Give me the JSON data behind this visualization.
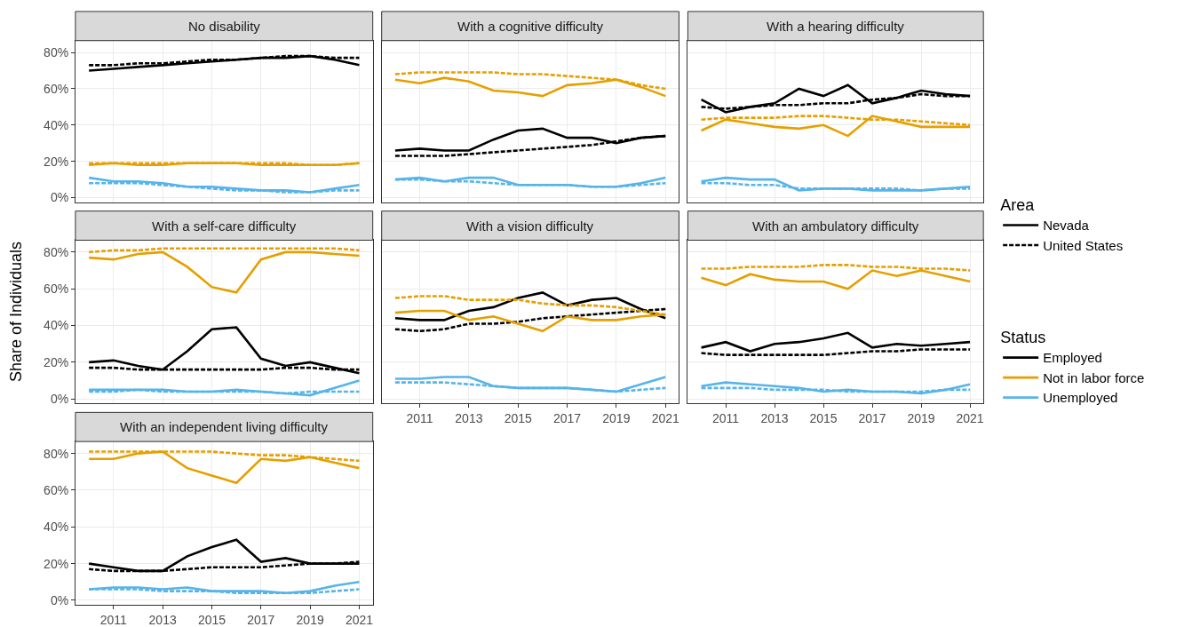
{
  "chart_data": [
    {
      "type": "line",
      "title": "No disability",
      "ylabel": "Share of Individuals",
      "legend": "right",
      "legend_title": [
        "Area",
        "Status"
      ],
      "grid": true,
      "marker": "none",
      "tick_labels": "y",
      "xlim": [
        2009.45,
        2021.55
      ],
      "ylim": [
        -2.5,
        86.5
      ],
      "xticks": [
        2011,
        2013,
        2015,
        2017,
        2019,
        2021
      ],
      "yticks": [
        {
          "value": 0,
          "label": "0%"
        },
        {
          "value": 20,
          "label": "20%"
        },
        {
          "value": 40,
          "label": "40%"
        },
        {
          "value": 60,
          "label": "60%"
        },
        {
          "value": 80,
          "label": "80%"
        }
      ],
      "x": [
        2010,
        2011,
        2012,
        2013,
        2014,
        2015,
        2016,
        2017,
        2018,
        2019,
        2020,
        2021
      ],
      "series": [
        {
          "name": "Employed",
          "line_style": "solid",
          "color": "#000000",
          "values": [
            70,
            71,
            72,
            73,
            74,
            75,
            76,
            77,
            77,
            78,
            76,
            73
          ]
        },
        {
          "line_style": "dashed",
          "color": "#000000",
          "values": [
            73,
            73,
            74,
            74,
            75,
            76,
            76,
            77,
            78,
            78,
            77,
            77
          ]
        },
        {
          "name": "Not in labor force",
          "line_style": "solid",
          "color": "#e69f00",
          "values": [
            18,
            19,
            18,
            18,
            19,
            19,
            19,
            18,
            18,
            18,
            18,
            19
          ]
        },
        {
          "line_style": "dashed",
          "color": "#e69f00",
          "values": [
            19,
            19,
            19,
            19,
            19,
            19,
            19,
            19,
            19,
            18,
            18,
            19
          ]
        },
        {
          "name": "Unemployed",
          "line_style": "solid",
          "color": "#56b4e9",
          "values": [
            11,
            9,
            9,
            8,
            6,
            6,
            5,
            4,
            4,
            3,
            5,
            7
          ]
        },
        {
          "line_style": "dashed",
          "color": "#56b4e9",
          "values": [
            8,
            8,
            8,
            7,
            6,
            5,
            4,
            4,
            3,
            3,
            4,
            4
          ]
        },
        {
          "name": "Nevada",
          "line_style": "solid",
          "color": "#000000",
          "values": [
            null,
            null,
            null,
            null,
            null,
            null,
            null,
            null,
            null,
            null,
            null,
            null
          ]
        },
        {
          "name": "United States",
          "line_style": "dashed",
          "color": "#000000",
          "values": [
            null,
            null,
            null,
            null,
            null,
            null,
            null,
            null,
            null,
            null,
            null,
            null
          ]
        }
      ]
    },
    {
      "type": "line",
      "title": "With a cognitive difficulty",
      "grid": true,
      "marker": "none",
      "tick_labels": false,
      "xlim": [
        2009.45,
        2021.55
      ],
      "ylim": [
        -2.5,
        86.5
      ],
      "xticks": [
        2011,
        2013,
        2015,
        2017,
        2019,
        2021
      ],
      "yticks": [
        {
          "value": 0,
          "label": null
        },
        {
          "value": 20,
          "label": null
        },
        {
          "value": 40,
          "label": null
        },
        {
          "value": 60,
          "label": null
        },
        {
          "value": 80,
          "label": null
        }
      ],
      "x": [
        2010,
        2011,
        2012,
        2013,
        2014,
        2015,
        2016,
        2017,
        2018,
        2019,
        2020,
        2021
      ],
      "series": [
        {
          "line_style": "solid",
          "color": "#000000",
          "values": [
            26,
            27,
            26,
            26,
            32,
            37,
            38,
            33,
            33,
            30,
            33,
            34
          ]
        },
        {
          "line_style": "dashed",
          "color": "#000000",
          "values": [
            23,
            23,
            23,
            24,
            25,
            26,
            27,
            28,
            29,
            31,
            33,
            34
          ]
        },
        {
          "line_style": "solid",
          "color": "#e69f00",
          "values": [
            65,
            63,
            66,
            64,
            59,
            58,
            56,
            62,
            63,
            65,
            61,
            56
          ]
        },
        {
          "line_style": "dashed",
          "color": "#e69f00",
          "values": [
            68,
            69,
            69,
            69,
            69,
            68,
            68,
            67,
            66,
            65,
            62,
            60
          ]
        },
        {
          "line_style": "solid",
          "color": "#56b4e9",
          "values": [
            10,
            11,
            9,
            11,
            11,
            7,
            7,
            7,
            6,
            6,
            8,
            11
          ]
        },
        {
          "line_style": "dashed",
          "color": "#56b4e9",
          "values": [
            10,
            10,
            9,
            9,
            8,
            7,
            7,
            7,
            6,
            6,
            7,
            8
          ]
        }
      ]
    },
    {
      "type": "line",
      "title": "With a hearing difficulty",
      "grid": true,
      "marker": "none",
      "tick_labels": false,
      "xlim": [
        2009.45,
        2021.55
      ],
      "ylim": [
        -2.5,
        86.5
      ],
      "xticks": [
        2011,
        2013,
        2015,
        2017,
        2019,
        2021
      ],
      "yticks": [
        {
          "value": 0,
          "label": null
        },
        {
          "value": 20,
          "label": null
        },
        {
          "value": 40,
          "label": null
        },
        {
          "value": 60,
          "label": null
        },
        {
          "value": 80,
          "label": null
        }
      ],
      "x": [
        2010,
        2011,
        2012,
        2013,
        2014,
        2015,
        2016,
        2017,
        2018,
        2019,
        2020,
        2021
      ],
      "series": [
        {
          "line_style": "solid",
          "color": "#000000",
          "values": [
            54,
            47,
            50,
            52,
            60,
            56,
            62,
            52,
            55,
            59,
            57,
            56
          ]
        },
        {
          "line_style": "dashed",
          "color": "#000000",
          "values": [
            50,
            49,
            50,
            51,
            51,
            52,
            52,
            54,
            55,
            57,
            56,
            56
          ]
        },
        {
          "line_style": "solid",
          "color": "#e69f00",
          "values": [
            37,
            43,
            41,
            39,
            38,
            40,
            34,
            45,
            42,
            39,
            39,
            39
          ]
        },
        {
          "line_style": "dashed",
          "color": "#e69f00",
          "values": [
            43,
            44,
            44,
            44,
            45,
            45,
            44,
            43,
            43,
            42,
            41,
            40
          ]
        },
        {
          "line_style": "solid",
          "color": "#56b4e9",
          "values": [
            9,
            11,
            10,
            10,
            4,
            5,
            5,
            4,
            4,
            4,
            5,
            6
          ]
        },
        {
          "line_style": "dashed",
          "color": "#56b4e9",
          "values": [
            8,
            8,
            7,
            7,
            5,
            5,
            5,
            5,
            5,
            4,
            5,
            5
          ]
        }
      ]
    },
    {
      "type": "line",
      "title": "With a self-care difficulty",
      "grid": true,
      "marker": "none",
      "tick_labels": "y",
      "xlim": [
        2009.45,
        2021.55
      ],
      "ylim": [
        -2.5,
        86.5
      ],
      "xticks": [
        2011,
        2013,
        2015,
        2017,
        2019,
        2021
      ],
      "yticks": [
        {
          "value": 0,
          "label": "0%"
        },
        {
          "value": 20,
          "label": "20%"
        },
        {
          "value": 40,
          "label": "40%"
        },
        {
          "value": 60,
          "label": "60%"
        },
        {
          "value": 80,
          "label": "80%"
        }
      ],
      "x": [
        2010,
        2011,
        2012,
        2013,
        2014,
        2015,
        2016,
        2017,
        2018,
        2019,
        2020,
        2021
      ],
      "series": [
        {
          "line_style": "solid",
          "color": "#000000",
          "values": [
            20,
            21,
            18,
            16,
            26,
            38,
            39,
            22,
            18,
            20,
            17,
            14
          ]
        },
        {
          "line_style": "dashed",
          "color": "#000000",
          "values": [
            17,
            17,
            16,
            16,
            16,
            16,
            16,
            16,
            17,
            17,
            16,
            16
          ]
        },
        {
          "line_style": "solid",
          "color": "#e69f00",
          "values": [
            77,
            76,
            79,
            80,
            72,
            61,
            58,
            76,
            80,
            80,
            79,
            78
          ]
        },
        {
          "line_style": "dashed",
          "color": "#e69f00",
          "values": [
            80,
            81,
            81,
            82,
            82,
            82,
            82,
            82,
            82,
            82,
            82,
            81
          ]
        },
        {
          "line_style": "solid",
          "color": "#56b4e9",
          "values": [
            5,
            5,
            5,
            5,
            4,
            4,
            5,
            4,
            3,
            2,
            6,
            10
          ]
        },
        {
          "line_style": "dashed",
          "color": "#56b4e9",
          "values": [
            4,
            4,
            5,
            4,
            4,
            4,
            4,
            4,
            3,
            4,
            4,
            4
          ]
        }
      ]
    },
    {
      "type": "line",
      "title": "With a vision difficulty",
      "grid": true,
      "marker": "none",
      "tick_labels": "x",
      "xlim": [
        2009.45,
        2021.55
      ],
      "ylim": [
        -2.5,
        86.5
      ],
      "xticks": [
        2011,
        2013,
        2015,
        2017,
        2019,
        2021
      ],
      "yticks": [
        {
          "value": 0,
          "label": null
        },
        {
          "value": 20,
          "label": null
        },
        {
          "value": 40,
          "label": null
        },
        {
          "value": 60,
          "label": null
        },
        {
          "value": 80,
          "label": null
        }
      ],
      "x": [
        2010,
        2011,
        2012,
        2013,
        2014,
        2015,
        2016,
        2017,
        2018,
        2019,
        2020,
        2021
      ],
      "series": [
        {
          "line_style": "solid",
          "color": "#000000",
          "values": [
            44,
            43,
            43,
            48,
            50,
            55,
            58,
            51,
            54,
            55,
            49,
            44
          ]
        },
        {
          "line_style": "dashed",
          "color": "#000000",
          "values": [
            38,
            37,
            38,
            41,
            41,
            42,
            44,
            45,
            46,
            47,
            48,
            49
          ]
        },
        {
          "line_style": "solid",
          "color": "#e69f00",
          "values": [
            47,
            48,
            48,
            43,
            45,
            41,
            37,
            45,
            43,
            43,
            45,
            46
          ]
        },
        {
          "line_style": "dashed",
          "color": "#e69f00",
          "values": [
            55,
            56,
            56,
            54,
            54,
            54,
            52,
            51,
            51,
            50,
            48,
            46
          ]
        },
        {
          "line_style": "solid",
          "color": "#56b4e9",
          "values": [
            11,
            11,
            12,
            12,
            7,
            6,
            6,
            6,
            5,
            4,
            8,
            12
          ]
        },
        {
          "line_style": "dashed",
          "color": "#56b4e9",
          "values": [
            9,
            9,
            9,
            8,
            7,
            6,
            6,
            6,
            5,
            4,
            5,
            6
          ]
        }
      ]
    },
    {
      "type": "line",
      "title": "With an ambulatory difficulty",
      "grid": true,
      "marker": "none",
      "tick_labels": "x",
      "xlim": [
        2009.45,
        2021.55
      ],
      "ylim": [
        -2.5,
        86.5
      ],
      "xticks": [
        2011,
        2013,
        2015,
        2017,
        2019,
        2021
      ],
      "yticks": [
        {
          "value": 0,
          "label": null
        },
        {
          "value": 20,
          "label": null
        },
        {
          "value": 40,
          "label": null
        },
        {
          "value": 60,
          "label": null
        },
        {
          "value": 80,
          "label": null
        }
      ],
      "x": [
        2010,
        2011,
        2012,
        2013,
        2014,
        2015,
        2016,
        2017,
        2018,
        2019,
        2020,
        2021
      ],
      "series": [
        {
          "line_style": "solid",
          "color": "#000000",
          "values": [
            28,
            31,
            26,
            30,
            31,
            33,
            36,
            28,
            30,
            29,
            30,
            31
          ]
        },
        {
          "line_style": "dashed",
          "color": "#000000",
          "values": [
            25,
            24,
            24,
            24,
            24,
            24,
            25,
            26,
            26,
            27,
            27,
            27
          ]
        },
        {
          "line_style": "solid",
          "color": "#e69f00",
          "values": [
            66,
            62,
            68,
            65,
            64,
            64,
            60,
            70,
            67,
            70,
            67,
            64
          ]
        },
        {
          "line_style": "dashed",
          "color": "#e69f00",
          "values": [
            71,
            71,
            72,
            72,
            72,
            73,
            73,
            72,
            72,
            71,
            71,
            70
          ]
        },
        {
          "line_style": "solid",
          "color": "#56b4e9",
          "values": [
            7,
            9,
            8,
            7,
            6,
            4,
            5,
            4,
            4,
            3,
            5,
            8
          ]
        },
        {
          "line_style": "dashed",
          "color": "#56b4e9",
          "values": [
            6,
            6,
            6,
            5,
            5,
            5,
            4,
            4,
            4,
            4,
            5,
            5
          ]
        }
      ]
    },
    {
      "type": "line",
      "title": "With an independent living difficulty",
      "grid": true,
      "marker": "none",
      "xlim": [
        2009.45,
        2021.55
      ],
      "ylim": [
        -2.5,
        86.5
      ],
      "xticks": [
        2011,
        2013,
        2015,
        2017,
        2019,
        2021
      ],
      "yticks": [
        {
          "value": 0,
          "label": "0%"
        },
        {
          "value": 20,
          "label": "20%"
        },
        {
          "value": 40,
          "label": "40%"
        },
        {
          "value": 60,
          "label": "60%"
        },
        {
          "value": 80,
          "label": "80%"
        }
      ],
      "x": [
        2010,
        2011,
        2012,
        2013,
        2014,
        2015,
        2016,
        2017,
        2018,
        2019,
        2020,
        2021
      ],
      "series": [
        {
          "line_style": "solid",
          "color": "#000000",
          "values": [
            20,
            18,
            16,
            16,
            24,
            29,
            33,
            21,
            23,
            20,
            20,
            20
          ]
        },
        {
          "line_style": "dashed",
          "color": "#000000",
          "values": [
            17,
            16,
            16,
            16,
            17,
            18,
            18,
            18,
            19,
            20,
            20,
            21
          ]
        },
        {
          "line_style": "solid",
          "color": "#e69f00",
          "values": [
            77,
            77,
            80,
            81,
            72,
            68,
            64,
            77,
            76,
            78,
            75,
            72
          ]
        },
        {
          "line_style": "dashed",
          "color": "#e69f00",
          "values": [
            81,
            81,
            81,
            81,
            81,
            81,
            80,
            79,
            79,
            78,
            77,
            76
          ]
        },
        {
          "line_style": "solid",
          "color": "#56b4e9",
          "values": [
            6,
            7,
            7,
            6,
            7,
            5,
            5,
            5,
            4,
            5,
            8,
            10
          ]
        },
        {
          "line_style": "dashed",
          "color": "#56b4e9",
          "values": [
            6,
            6,
            6,
            5,
            5,
            5,
            4,
            4,
            4,
            4,
            5,
            6
          ]
        }
      ]
    }
  ]
}
